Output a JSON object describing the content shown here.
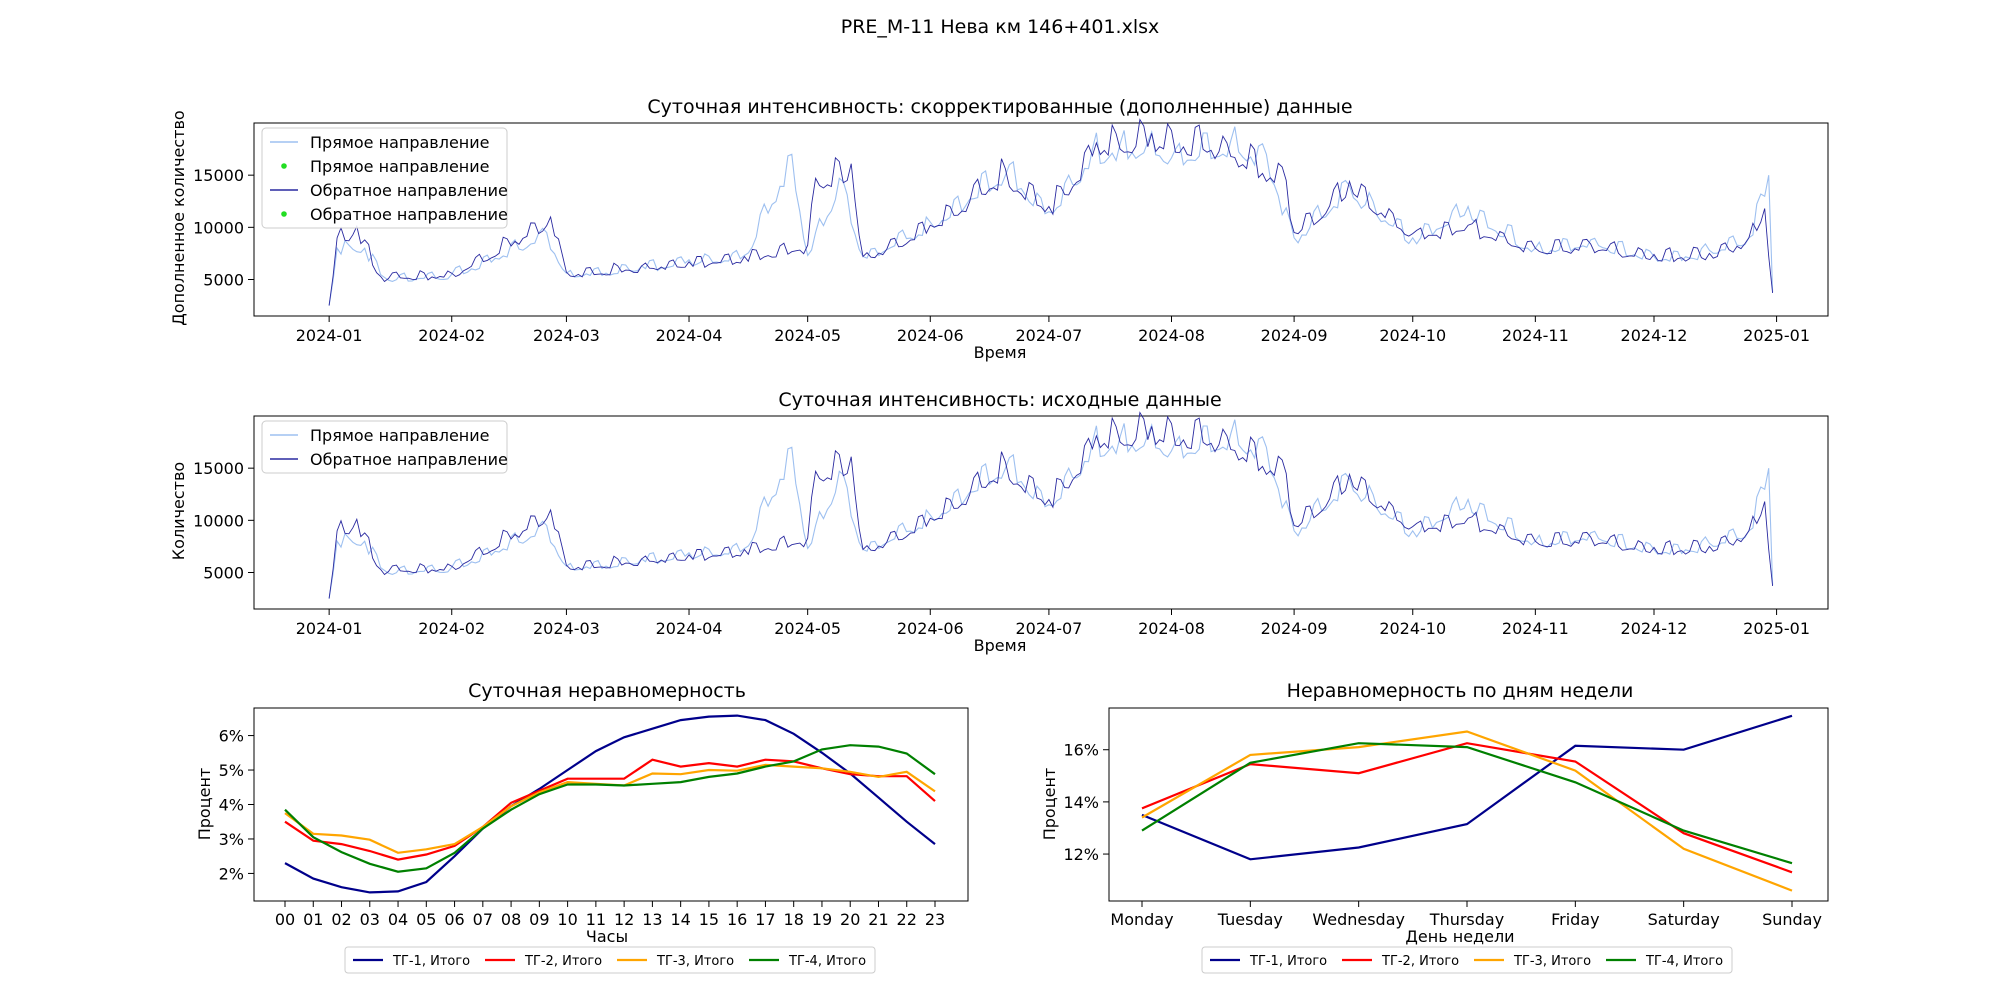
{
  "figure_title": "PRE_M-11 Нева км 146+401.xlsx",
  "colors": {
    "forward": "#9ec0f0",
    "reverse": "#2a2aa0",
    "marker": "#22dd22",
    "tg1": "#00008b",
    "tg2": "#ff0000",
    "tg3": "#ffa500",
    "tg4": "#008000"
  },
  "chart_data": [
    {
      "type": "line",
      "title": "Суточная интенсивность: скорректированные (дополненные) данные",
      "xlabel": "Время",
      "ylabel": "Дополненное количество",
      "x_ticks": [
        "2024-01",
        "2024-02",
        "2024-03",
        "2024-04",
        "2024-05",
        "2024-06",
        "2024-07",
        "2024-08",
        "2024-09",
        "2024-10",
        "2024-11",
        "2024-12",
        "2025-01"
      ],
      "y_ticks": [
        5000,
        10000,
        15000
      ],
      "xlim": [
        "2023-12-13",
        "2025-01-14"
      ],
      "ylim": [
        1500,
        20000
      ],
      "legend": [
        "Прямое направление",
        "Прямое направление",
        "Обратное направление",
        "Обратное направление"
      ],
      "legend_position": "upper-left",
      "series": [
        {
          "name": "Прямое направление",
          "x": [
            "2024-01-01",
            "2024-01-03",
            "2024-01-06",
            "2024-01-10",
            "2024-01-15",
            "2024-02-01",
            "2024-02-25",
            "2024-03-01",
            "2024-03-20",
            "2024-04-01",
            "2024-04-15",
            "2024-04-27",
            "2024-05-01",
            "2024-05-09",
            "2024-05-15",
            "2024-06-01",
            "2024-06-21",
            "2024-07-01",
            "2024-07-12",
            "2024-07-19",
            "2024-07-26",
            "2024-08-02",
            "2024-08-16",
            "2024-08-25",
            "2024-09-01",
            "2024-09-15",
            "2024-10-01",
            "2024-10-15",
            "2024-11-01",
            "2024-11-15",
            "2024-12-01",
            "2024-12-15",
            "2024-12-25",
            "2024-12-30",
            "2024-12-31"
          ],
          "y": [
            2500,
            8000,
            8300,
            8000,
            5200,
            5500,
            9500,
            5600,
            6300,
            6900,
            7300,
            17000,
            7300,
            14700,
            7200,
            10500,
            16000,
            11500,
            17500,
            18000,
            18200,
            17500,
            18300,
            17000,
            9000,
            14000,
            9000,
            12000,
            8000,
            8800,
            7200,
            7800,
            9000,
            15000,
            3800
          ]
        },
        {
          "name": "Обратное направление",
          "x": [
            "2024-01-01",
            "2024-01-03",
            "2024-01-08",
            "2024-01-14",
            "2024-02-01",
            "2024-02-26",
            "2024-03-01",
            "2024-03-20",
            "2024-04-01",
            "2024-04-15",
            "2024-05-01",
            "2024-05-03",
            "2024-05-12",
            "2024-05-15",
            "2024-06-01",
            "2024-06-20",
            "2024-07-01",
            "2024-07-13",
            "2024-07-27",
            "2024-08-15",
            "2024-08-30",
            "2024-09-01",
            "2024-09-15",
            "2024-10-01",
            "2024-10-15",
            "2024-11-01",
            "2024-11-15",
            "2024-12-01",
            "2024-12-15",
            "2024-12-25",
            "2024-12-29",
            "2024-12-31"
          ],
          "y": [
            2500,
            9000,
            10100,
            5300,
            5600,
            11000,
            5700,
            6300,
            6700,
            7200,
            8300,
            14700,
            16100,
            7200,
            10200,
            15600,
            12000,
            18100,
            19000,
            18100,
            14500,
            9500,
            14400,
            9400,
            10200,
            8000,
            8400,
            7400,
            7500,
            9000,
            11800,
            3700
          ]
        }
      ]
    },
    {
      "type": "line",
      "title": "Суточная интенсивность: исходные данные",
      "xlabel": "Время",
      "ylabel": "Количество",
      "x_ticks": [
        "2024-01",
        "2024-02",
        "2024-03",
        "2024-04",
        "2024-05",
        "2024-06",
        "2024-07",
        "2024-08",
        "2024-09",
        "2024-10",
        "2024-11",
        "2024-12",
        "2025-01"
      ],
      "y_ticks": [
        5000,
        10000,
        15000
      ],
      "xlim": [
        "2023-12-13",
        "2025-01-14"
      ],
      "ylim": [
        1500,
        20000
      ],
      "legend": [
        "Прямое направление",
        "Обратное направление"
      ],
      "legend_position": "upper-left",
      "same_values_as_chart": 0
    },
    {
      "type": "line",
      "title": "Суточная неравномерность",
      "xlabel": "Часы",
      "ylabel": "Процент",
      "categories": [
        "00",
        "01",
        "02",
        "03",
        "04",
        "05",
        "06",
        "07",
        "08",
        "09",
        "10",
        "11",
        "12",
        "13",
        "14",
        "15",
        "16",
        "17",
        "18",
        "19",
        "20",
        "21",
        "22",
        "23"
      ],
      "y_ticks": [
        "2%",
        "3%",
        "4%",
        "5%",
        "6%"
      ],
      "ylim": [
        1.2,
        6.8
      ],
      "legend_position": "below",
      "series": [
        {
          "name": "ТГ-1, Итого",
          "values": [
            2.3,
            1.85,
            1.6,
            1.45,
            1.48,
            1.75,
            2.5,
            3.3,
            3.95,
            4.45,
            5.0,
            5.55,
            5.95,
            6.2,
            6.45,
            6.55,
            6.58,
            6.45,
            6.05,
            5.5,
            4.9,
            4.2,
            3.5,
            2.85
          ]
        },
        {
          "name": "ТГ-2, Итого",
          "values": [
            3.5,
            2.95,
            2.85,
            2.65,
            2.4,
            2.55,
            2.8,
            3.35,
            4.05,
            4.4,
            4.75,
            4.75,
            4.75,
            5.3,
            5.1,
            5.2,
            5.1,
            5.3,
            5.25,
            5.05,
            4.88,
            4.82,
            4.82,
            4.1
          ]
        },
        {
          "name": "ТГ-3, Итого",
          "values": [
            3.75,
            3.15,
            3.1,
            2.98,
            2.6,
            2.7,
            2.85,
            3.35,
            3.95,
            4.35,
            4.65,
            4.6,
            4.55,
            4.9,
            4.88,
            5.0,
            4.98,
            5.15,
            5.1,
            5.05,
            4.95,
            4.8,
            4.95,
            4.38
          ]
        },
        {
          "name": "ТГ-4, Итого",
          "values": [
            3.85,
            3.05,
            2.62,
            2.28,
            2.05,
            2.15,
            2.6,
            3.3,
            3.85,
            4.3,
            4.58,
            4.58,
            4.55,
            4.6,
            4.65,
            4.8,
            4.9,
            5.1,
            5.25,
            5.6,
            5.72,
            5.68,
            5.48,
            4.88
          ]
        }
      ]
    },
    {
      "type": "line",
      "title": "Неравномерность по дням недели",
      "xlabel": "День недели",
      "ylabel": "Процент",
      "categories": [
        "Monday",
        "Tuesday",
        "Wednesday",
        "Thursday",
        "Friday",
        "Saturday",
        "Sunday"
      ],
      "y_ticks": [
        "12%",
        "14%",
        "16%"
      ],
      "ylim": [
        10.2,
        17.6
      ],
      "legend_position": "below",
      "series": [
        {
          "name": "ТГ-1, Итого",
          "values": [
            13.5,
            11.8,
            12.25,
            13.15,
            16.15,
            16.0,
            17.3
          ]
        },
        {
          "name": "ТГ-2, Итого",
          "values": [
            13.75,
            15.45,
            15.1,
            16.25,
            15.55,
            12.8,
            11.3
          ]
        },
        {
          "name": "ТГ-3, Итого",
          "values": [
            13.4,
            15.8,
            16.1,
            16.7,
            15.2,
            12.2,
            10.6
          ]
        },
        {
          "name": "ТГ-4, Итого",
          "values": [
            12.9,
            15.5,
            16.25,
            16.1,
            14.75,
            12.9,
            11.65
          ]
        }
      ]
    }
  ]
}
